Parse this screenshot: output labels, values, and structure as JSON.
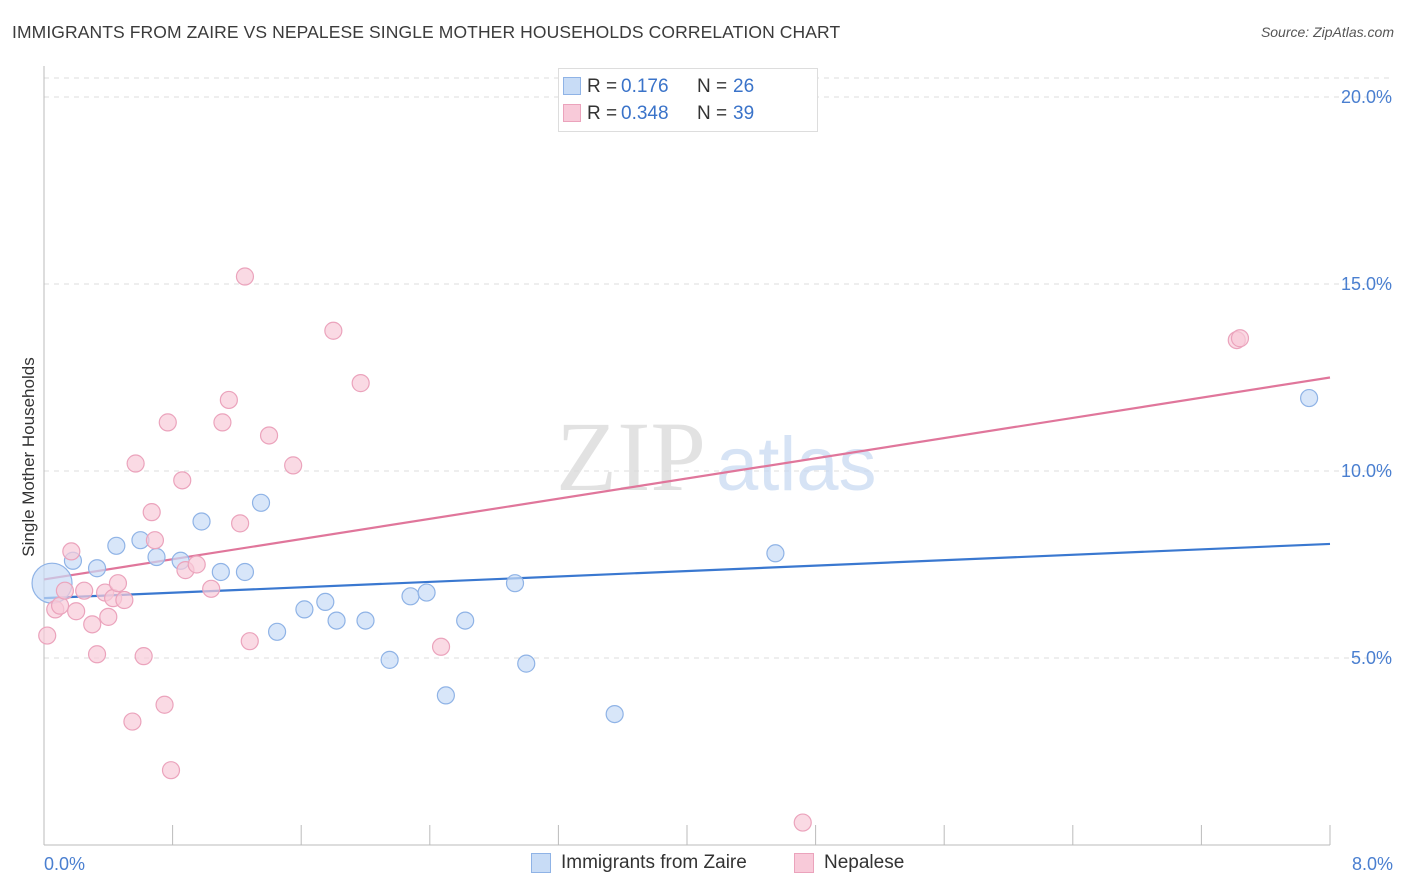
{
  "title": "IMMIGRANTS FROM ZAIRE VS NEPALESE SINGLE MOTHER HOUSEHOLDS CORRELATION CHART",
  "source": "Source: ZipAtlas.com",
  "watermark": {
    "zip": "ZIP",
    "atlas": "atlas"
  },
  "legend": {
    "rows": [
      {
        "r_label": "R =",
        "r_value": "0.176",
        "n_label": "N =",
        "n_value": "26"
      },
      {
        "r_label": "R =",
        "r_value": "0.348",
        "n_label": "N =",
        "n_value": "39"
      }
    ]
  },
  "bottom_legend": {
    "items": [
      {
        "label": "Immigrants from Zaire"
      },
      {
        "label": "Nepalese"
      }
    ]
  },
  "colors": {
    "blue_fill": "#c8dcf6",
    "blue_stroke": "#8fb3e6",
    "blue_line": "#3a78d0",
    "pink_fill": "#f8cad9",
    "pink_stroke": "#eba3bc",
    "pink_line": "#e0769b",
    "tick_text": "#4a7fd0",
    "grid": "#dddddd"
  },
  "chart_data": {
    "type": "scatter",
    "title": "IMMIGRANTS FROM ZAIRE VS NEPALESE SINGLE MOTHER HOUSEHOLDS CORRELATION CHART",
    "xlabel": "",
    "ylabel": "Single Mother Households",
    "xlim": [
      0,
      8
    ],
    "ylim": [
      0,
      20.5
    ],
    "x_tick_labels": [
      "0.0%",
      "8.0%"
    ],
    "y_ticks": [
      5,
      10,
      15,
      20
    ],
    "y_tick_labels": [
      "5.0%",
      "10.0%",
      "15.0%",
      "20.0%"
    ],
    "grid": true,
    "legend_position": "top-center",
    "series": [
      {
        "name": "Immigrants from Zaire",
        "color": "blue",
        "trend": {
          "x": [
            0,
            8
          ],
          "y": [
            6.6,
            8.05
          ]
        },
        "points": [
          {
            "x": 0.05,
            "y": 7.0,
            "big": true
          },
          {
            "x": 0.18,
            "y": 7.6
          },
          {
            "x": 0.33,
            "y": 7.4
          },
          {
            "x": 0.45,
            "y": 8.0
          },
          {
            "x": 0.6,
            "y": 8.15
          },
          {
            "x": 0.7,
            "y": 7.7
          },
          {
            "x": 0.85,
            "y": 7.6
          },
          {
            "x": 0.98,
            "y": 8.65
          },
          {
            "x": 1.1,
            "y": 7.3
          },
          {
            "x": 1.25,
            "y": 7.3
          },
          {
            "x": 1.35,
            "y": 9.15
          },
          {
            "x": 1.45,
            "y": 5.7
          },
          {
            "x": 1.62,
            "y": 6.3
          },
          {
            "x": 1.75,
            "y": 6.5
          },
          {
            "x": 1.82,
            "y": 6.0
          },
          {
            "x": 2.0,
            "y": 6.0
          },
          {
            "x": 2.15,
            "y": 4.95
          },
          {
            "x": 2.28,
            "y": 6.65
          },
          {
            "x": 2.38,
            "y": 6.75
          },
          {
            "x": 2.5,
            "y": 4.0
          },
          {
            "x": 2.62,
            "y": 6.0
          },
          {
            "x": 2.93,
            "y": 7.0
          },
          {
            "x": 3.0,
            "y": 4.85
          },
          {
            "x": 3.55,
            "y": 3.5
          },
          {
            "x": 4.55,
            "y": 7.8
          },
          {
            "x": 7.87,
            "y": 11.95
          }
        ]
      },
      {
        "name": "Nepalese",
        "color": "pink",
        "trend": {
          "x": [
            0,
            8
          ],
          "y": [
            7.1,
            12.5
          ]
        },
        "points": [
          {
            "x": 0.02,
            "y": 5.6
          },
          {
            "x": 0.07,
            "y": 6.3
          },
          {
            "x": 0.1,
            "y": 6.4
          },
          {
            "x": 0.13,
            "y": 6.8
          },
          {
            "x": 0.17,
            "y": 7.85
          },
          {
            "x": 0.2,
            "y": 6.25
          },
          {
            "x": 0.25,
            "y": 6.8
          },
          {
            "x": 0.3,
            "y": 5.9
          },
          {
            "x": 0.33,
            "y": 5.1
          },
          {
            "x": 0.38,
            "y": 6.75
          },
          {
            "x": 0.4,
            "y": 6.1
          },
          {
            "x": 0.43,
            "y": 6.6
          },
          {
            "x": 0.46,
            "y": 7.0
          },
          {
            "x": 0.5,
            "y": 6.55
          },
          {
            "x": 0.55,
            "y": 3.3
          },
          {
            "x": 0.57,
            "y": 10.2
          },
          {
            "x": 0.62,
            "y": 5.05
          },
          {
            "x": 0.67,
            "y": 8.9
          },
          {
            "x": 0.69,
            "y": 8.15
          },
          {
            "x": 0.75,
            "y": 3.75
          },
          {
            "x": 0.77,
            "y": 11.3
          },
          {
            "x": 0.79,
            "y": 2.0
          },
          {
            "x": 0.86,
            "y": 9.75
          },
          {
            "x": 0.88,
            "y": 7.35
          },
          {
            "x": 0.95,
            "y": 7.5
          },
          {
            "x": 1.04,
            "y": 6.85
          },
          {
            "x": 1.11,
            "y": 11.3
          },
          {
            "x": 1.15,
            "y": 11.9
          },
          {
            "x": 1.22,
            "y": 8.6
          },
          {
            "x": 1.25,
            "y": 15.2
          },
          {
            "x": 1.28,
            "y": 5.45
          },
          {
            "x": 1.4,
            "y": 10.95
          },
          {
            "x": 1.55,
            "y": 10.15
          },
          {
            "x": 1.8,
            "y": 13.75
          },
          {
            "x": 1.97,
            "y": 12.35
          },
          {
            "x": 2.47,
            "y": 5.3
          },
          {
            "x": 4.72,
            "y": 0.6
          },
          {
            "x": 7.42,
            "y": 13.5
          },
          {
            "x": 7.44,
            "y": 13.55
          }
        ]
      }
    ]
  }
}
